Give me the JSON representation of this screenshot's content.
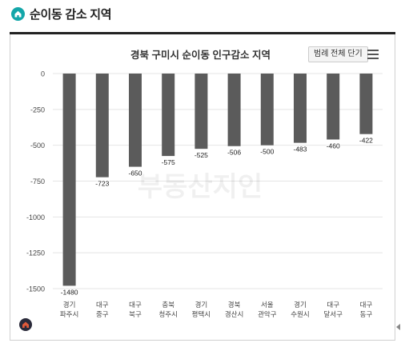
{
  "heading": {
    "text": "순이동 감소 지역",
    "icon": "home-icon"
  },
  "legend_button": "범례 전체 단기",
  "menu_icon": "hamburger-menu-icon",
  "watermark": "부동산지인",
  "colors": {
    "bar": "#5b5b5b",
    "accent": "#13a6a9",
    "grid": "#e4e4e4"
  },
  "chart_data": {
    "type": "bar",
    "title": "경북 구미시 순이동 인구감소 지역",
    "xlabel": "",
    "ylabel": "",
    "ylim": [
      -1500,
      0
    ],
    "yticks": [
      0,
      -250,
      -500,
      -750,
      -1000,
      -1250,
      -1500
    ],
    "grid": true,
    "categories": [
      [
        "경기",
        "파주시"
      ],
      [
        "대구",
        "중구"
      ],
      [
        "대구",
        "북구"
      ],
      [
        "충북",
        "청주시"
      ],
      [
        "경기",
        "평택시"
      ],
      [
        "경북",
        "경산시"
      ],
      [
        "서울",
        "관악구"
      ],
      [
        "경기",
        "수원시"
      ],
      [
        "대구",
        "달서구"
      ],
      [
        "대구",
        "동구"
      ]
    ],
    "values": [
      -1480,
      -723,
      -650,
      -575,
      -525,
      -506,
      -500,
      -483,
      -460,
      -422
    ]
  }
}
